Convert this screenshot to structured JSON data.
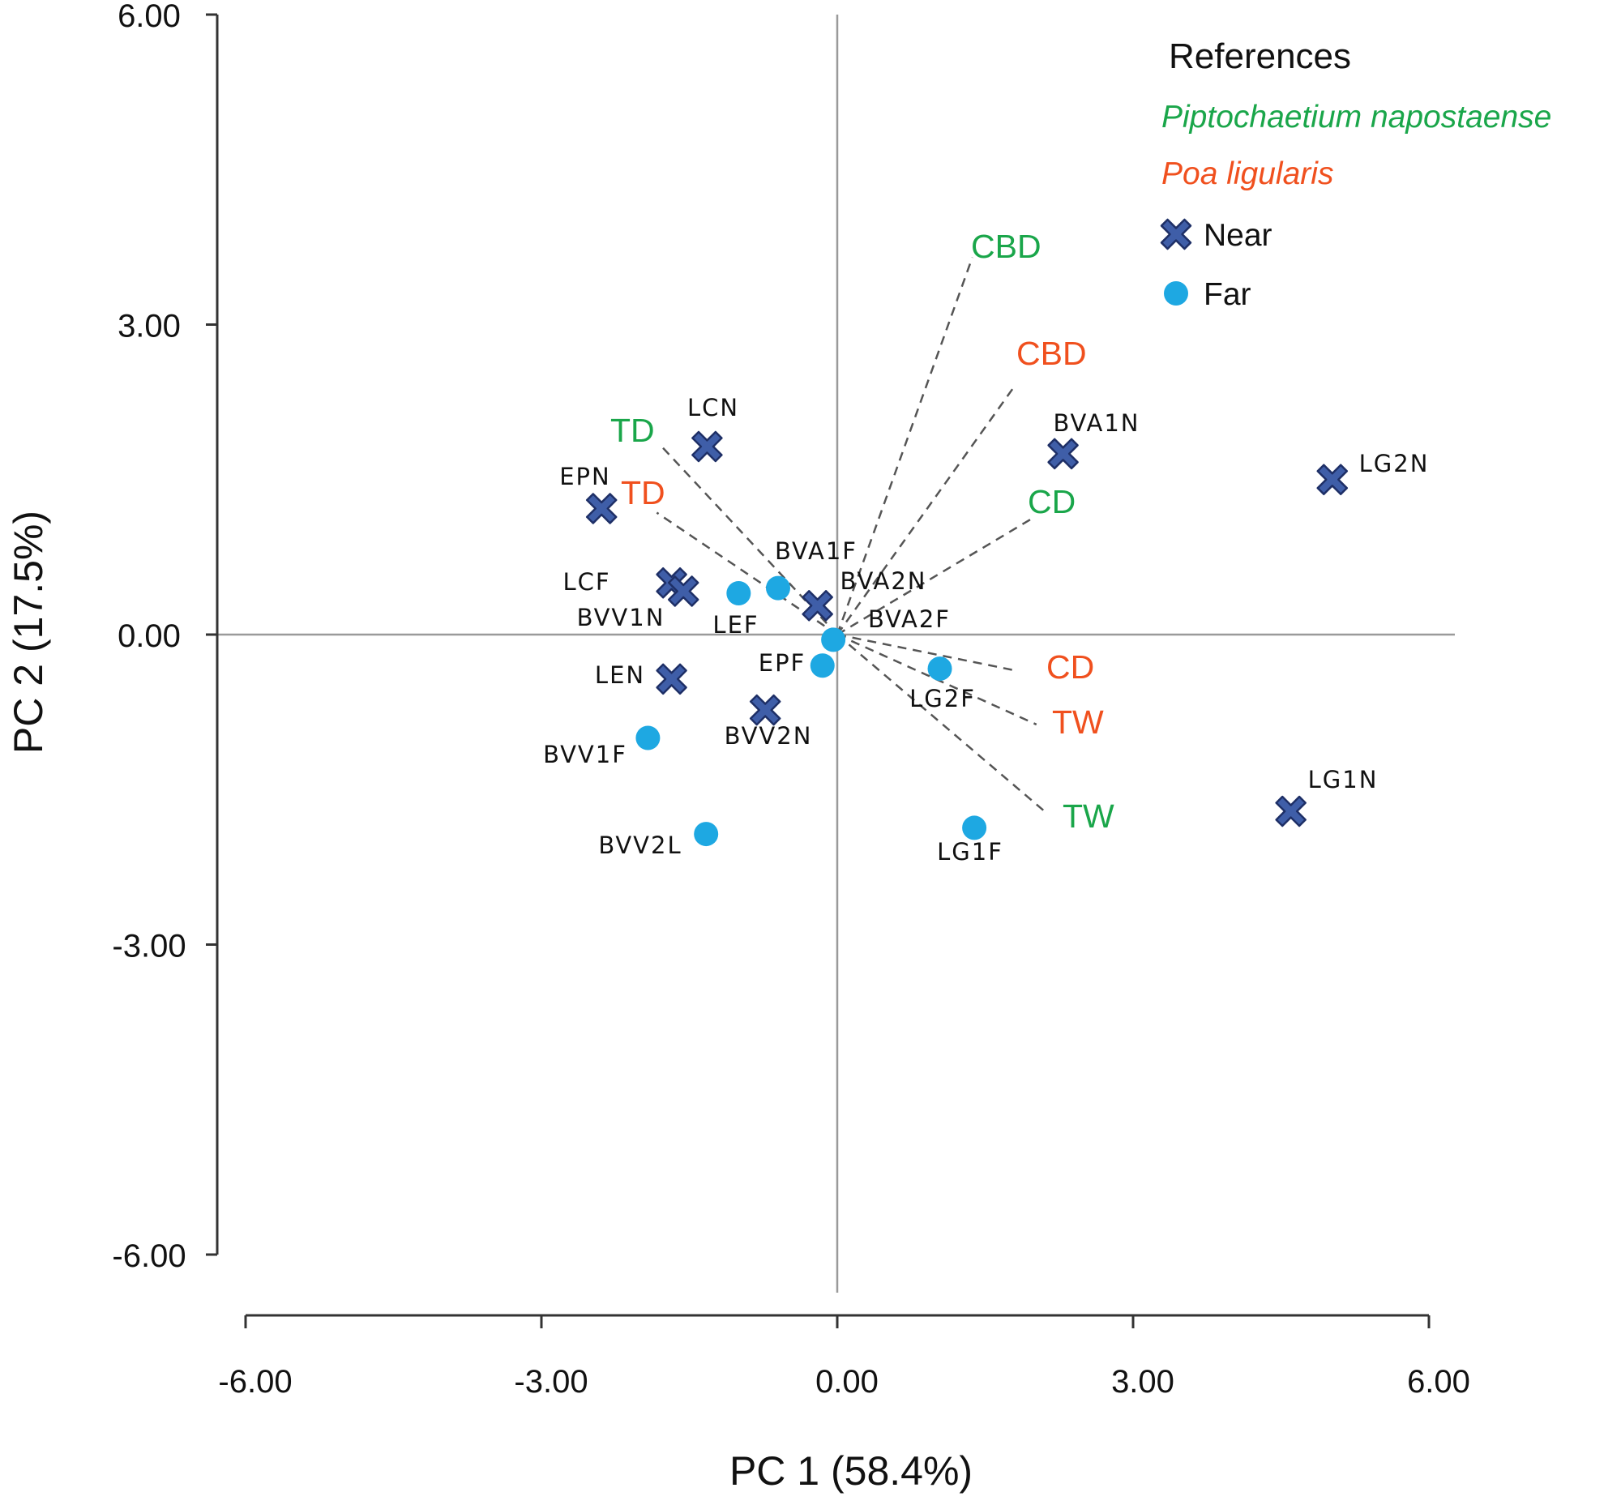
{
  "chart_data": {
    "type": "scatter",
    "title": "",
    "xlabel": "PC 1 (58.4%)",
    "ylabel": "PC 2 (17.5%)",
    "xlim": [
      -6,
      6
    ],
    "ylim": [
      -6,
      6
    ],
    "x_ticks": [
      -6,
      -3,
      0,
      3,
      6
    ],
    "y_ticks": [
      -6,
      -3,
      0,
      3,
      6
    ],
    "x_tick_labels": [
      "-6.00",
      "-3.00",
      "0.00",
      "3.00",
      "6.00"
    ],
    "y_tick_labels": [
      "-6.00",
      "-3.00",
      "0.00",
      "3.00",
      "6.00"
    ],
    "legend": {
      "title": "References",
      "position": "top-right",
      "species": [
        {
          "name": "Piptochaetium napostaense",
          "color": "#1aa64a"
        },
        {
          "name": "Poa ligularis",
          "color": "#f0501e"
        }
      ],
      "markers": [
        {
          "name": "Near",
          "shape": "x"
        },
        {
          "name": "Far",
          "shape": "circle"
        }
      ]
    },
    "colors": {
      "near_fill": "#3f5ea8",
      "near_stroke": "#1e2f66",
      "far_fill": "#1ea8e2",
      "species_green": "#1aa64a",
      "species_red": "#f0501e",
      "axis": "#333333",
      "origin_lines": "#9a9a9a",
      "vectors": "#555555"
    },
    "series": [
      {
        "name": "Near",
        "points": [
          {
            "label": "LCN",
            "x": -1.32,
            "y": 1.82
          },
          {
            "label": "EPN",
            "x": -2.39,
            "y": 1.22
          },
          {
            "label": "BVA1N",
            "x": 2.29,
            "y": 1.75
          },
          {
            "label": "LG2N",
            "x": 5.02,
            "y": 1.5
          },
          {
            "label": "LCF",
            "x": -1.68,
            "y": 0.5
          },
          {
            "label": "BVV1N",
            "x": -1.56,
            "y": 0.42
          },
          {
            "label": "BVA2N",
            "x": -0.2,
            "y": 0.28
          },
          {
            "label": "LEN",
            "x": -1.68,
            "y": -0.43
          },
          {
            "label": "BVV2N",
            "x": -0.73,
            "y": -0.73
          },
          {
            "label": "LG1N",
            "x": 4.6,
            "y": -1.71
          }
        ]
      },
      {
        "name": "Far",
        "points": [
          {
            "label": "BVA1F",
            "x": -0.6,
            "y": 0.45
          },
          {
            "label": "LEF",
            "x": -1.0,
            "y": 0.4
          },
          {
            "label": "BVA2F",
            "x": -0.04,
            "y": -0.05
          },
          {
            "label": "EPF",
            "x": -0.15,
            "y": -0.3
          },
          {
            "label": "LG2F",
            "x": 1.04,
            "y": -0.33
          },
          {
            "label": "BVV1F",
            "x": -1.92,
            "y": -1.0
          },
          {
            "label": "BVV2L",
            "x": -1.33,
            "y": -1.93
          },
          {
            "label": "LG1F",
            "x": 1.39,
            "y": -1.87
          }
        ]
      }
    ],
    "loadings": [
      {
        "label": "CBD",
        "species": "Piptochaetium napostaense",
        "x": 1.37,
        "y": 3.65
      },
      {
        "label": "CBD",
        "species": "Poa ligularis",
        "x": 1.78,
        "y": 2.38
      },
      {
        "label": "TD",
        "species": "Piptochaetium napostaense",
        "x": -1.81,
        "y": 1.85
      },
      {
        "label": "TD",
        "species": "Poa ligularis",
        "x": -1.83,
        "y": 1.18
      },
      {
        "label": "CD",
        "species": "Piptochaetium napostaense",
        "x": 1.97,
        "y": 1.12
      },
      {
        "label": "CD",
        "species": "Poa ligularis",
        "x": 1.82,
        "y": -0.35
      },
      {
        "label": "TW",
        "species": "Poa ligularis",
        "x": 2.02,
        "y": -0.87
      },
      {
        "label": "TW",
        "species": "Piptochaetium napostaense",
        "x": 2.09,
        "y": -1.7
      }
    ]
  }
}
